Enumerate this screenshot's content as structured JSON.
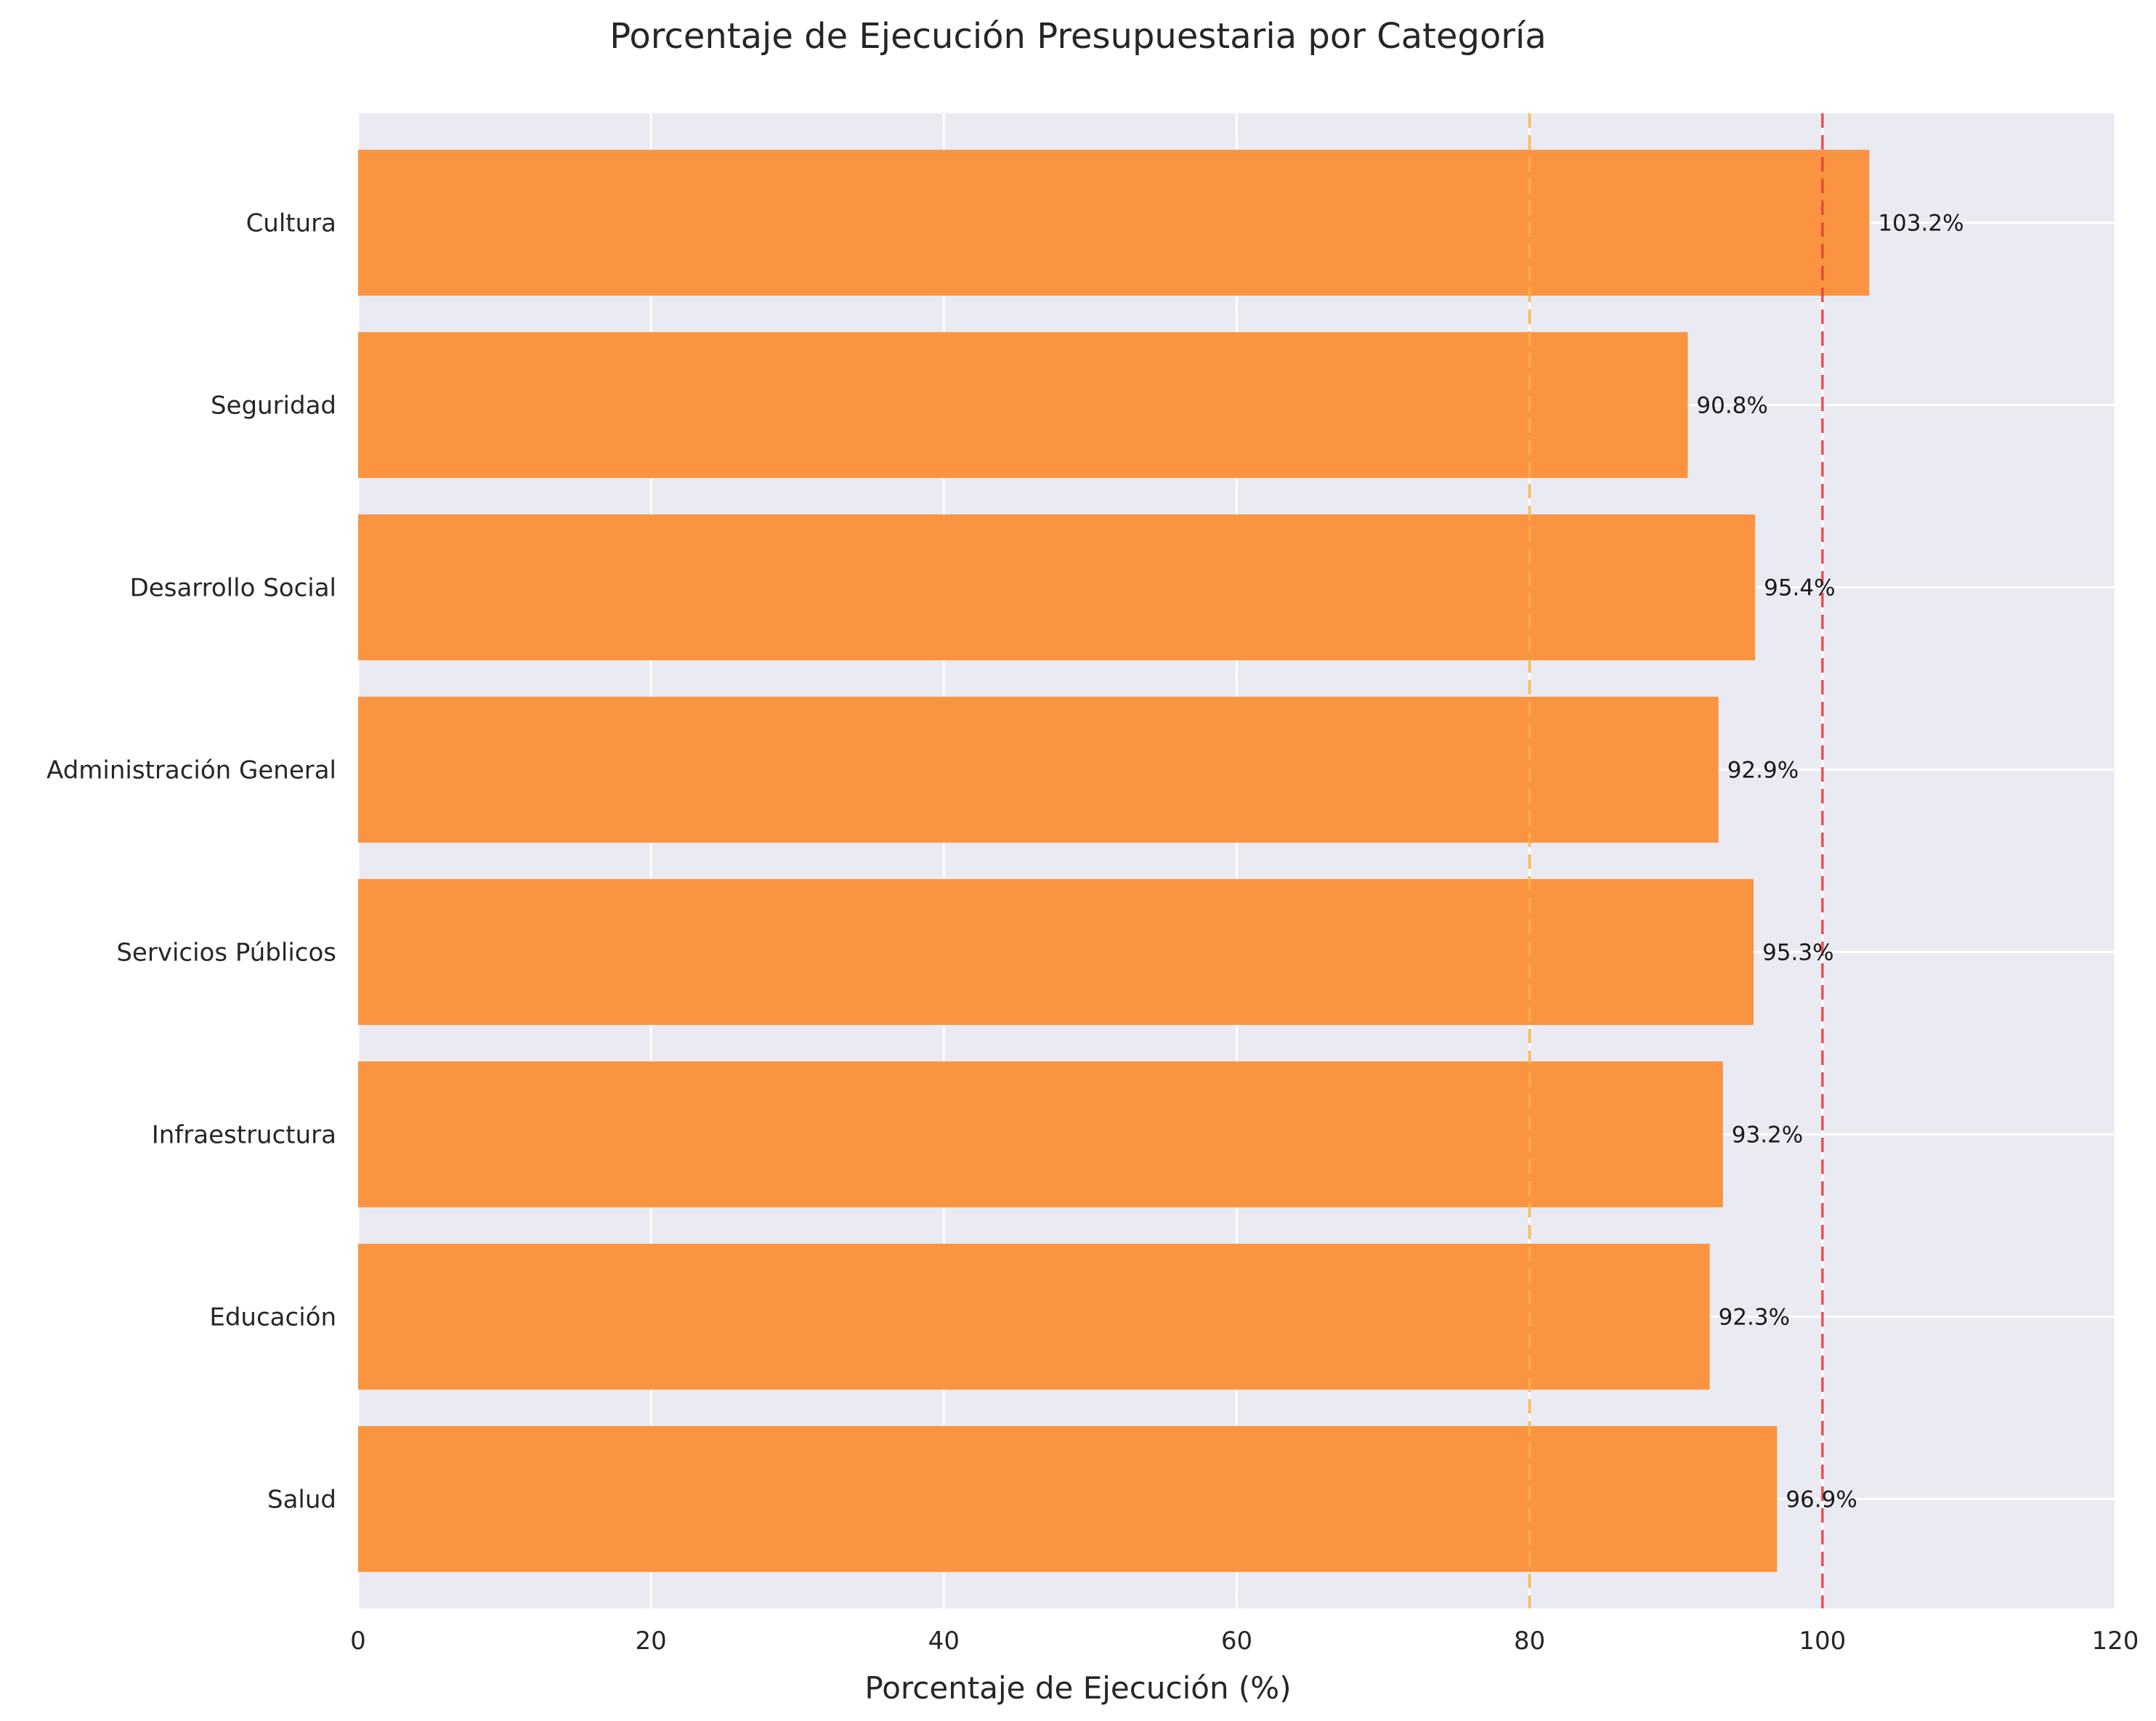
{
  "chart_data": {
    "type": "bar",
    "orientation": "horizontal",
    "title": "Porcentaje de Ejecución Presupuestaria por Categoría",
    "xlabel": "Porcentaje de Ejecución (%)",
    "ylabel": "",
    "xlim": [
      0,
      120
    ],
    "xticks": [
      0,
      20,
      40,
      60,
      80,
      100,
      120
    ],
    "categories": [
      "Salud",
      "Educación",
      "Infraestructura",
      "Servicios Públicos",
      "Administración General",
      "Desarrollo Social",
      "Seguridad",
      "Cultura"
    ],
    "values": [
      96.9,
      92.3,
      93.2,
      95.3,
      92.9,
      95.4,
      90.8,
      103.2
    ],
    "data_labels": [
      "96.9%",
      "92.3%",
      "93.2%",
      "95.3%",
      "92.9%",
      "95.4%",
      "90.8%",
      "103.2%"
    ],
    "reference_lines": [
      {
        "value": 80,
        "color": "#ffb347",
        "style": "dashed"
      },
      {
        "value": 100,
        "color": "#e8403c",
        "style": "dashed"
      }
    ],
    "grid": true,
    "colors": {
      "bar": "#fb9440",
      "background": "#eaeaf2",
      "grid": "#ffffff"
    }
  }
}
